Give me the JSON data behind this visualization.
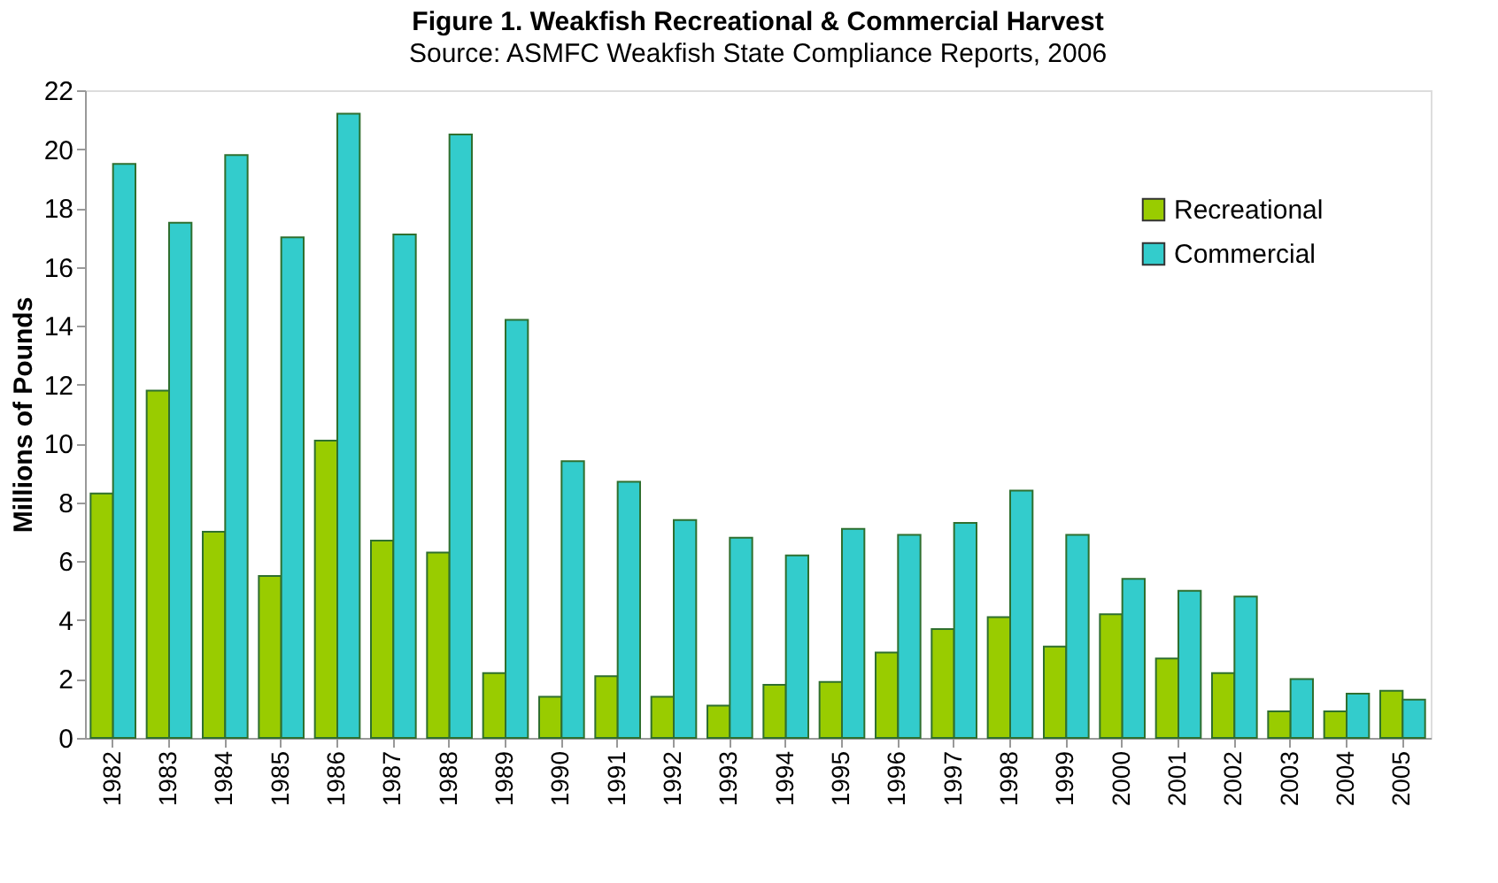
{
  "chart_data": {
    "type": "bar",
    "title": "Figure 1. Weakfish Recreational & Commercial Harvest",
    "subtitle": "Source: ASMFC Weakfish State Compliance Reports, 2006",
    "ylabel": "Millions of Pounds",
    "categories": [
      "1982",
      "1983",
      "1984",
      "1985",
      "1986",
      "1987",
      "1988",
      "1989",
      "1990",
      "1991",
      "1992",
      "1993",
      "1994",
      "1995",
      "1996",
      "1997",
      "1998",
      "1999",
      "2000",
      "2001",
      "2002",
      "2003",
      "2004",
      "2005"
    ],
    "series": [
      {
        "name": "Recreational",
        "color": "#99cc00",
        "values": [
          8.3,
          11.8,
          7.0,
          5.5,
          10.1,
          6.7,
          6.3,
          2.2,
          1.4,
          2.1,
          1.4,
          1.1,
          1.8,
          1.9,
          2.9,
          3.7,
          4.1,
          3.1,
          4.2,
          2.7,
          2.2,
          0.9,
          0.9,
          1.6
        ]
      },
      {
        "name": "Commercial",
        "color": "#33cccc",
        "values": [
          19.5,
          17.5,
          19.8,
          17.0,
          21.2,
          17.1,
          20.5,
          14.2,
          9.4,
          8.7,
          7.4,
          6.8,
          6.2,
          7.1,
          6.9,
          7.3,
          8.4,
          6.9,
          5.4,
          5.0,
          4.8,
          2.0,
          1.5,
          1.3
        ]
      }
    ],
    "ylim": [
      0,
      22
    ],
    "yticks": [
      0,
      2,
      4,
      6,
      8,
      10,
      12,
      14,
      16,
      18,
      20,
      22
    ],
    "grid": false,
    "legend": "top right"
  }
}
